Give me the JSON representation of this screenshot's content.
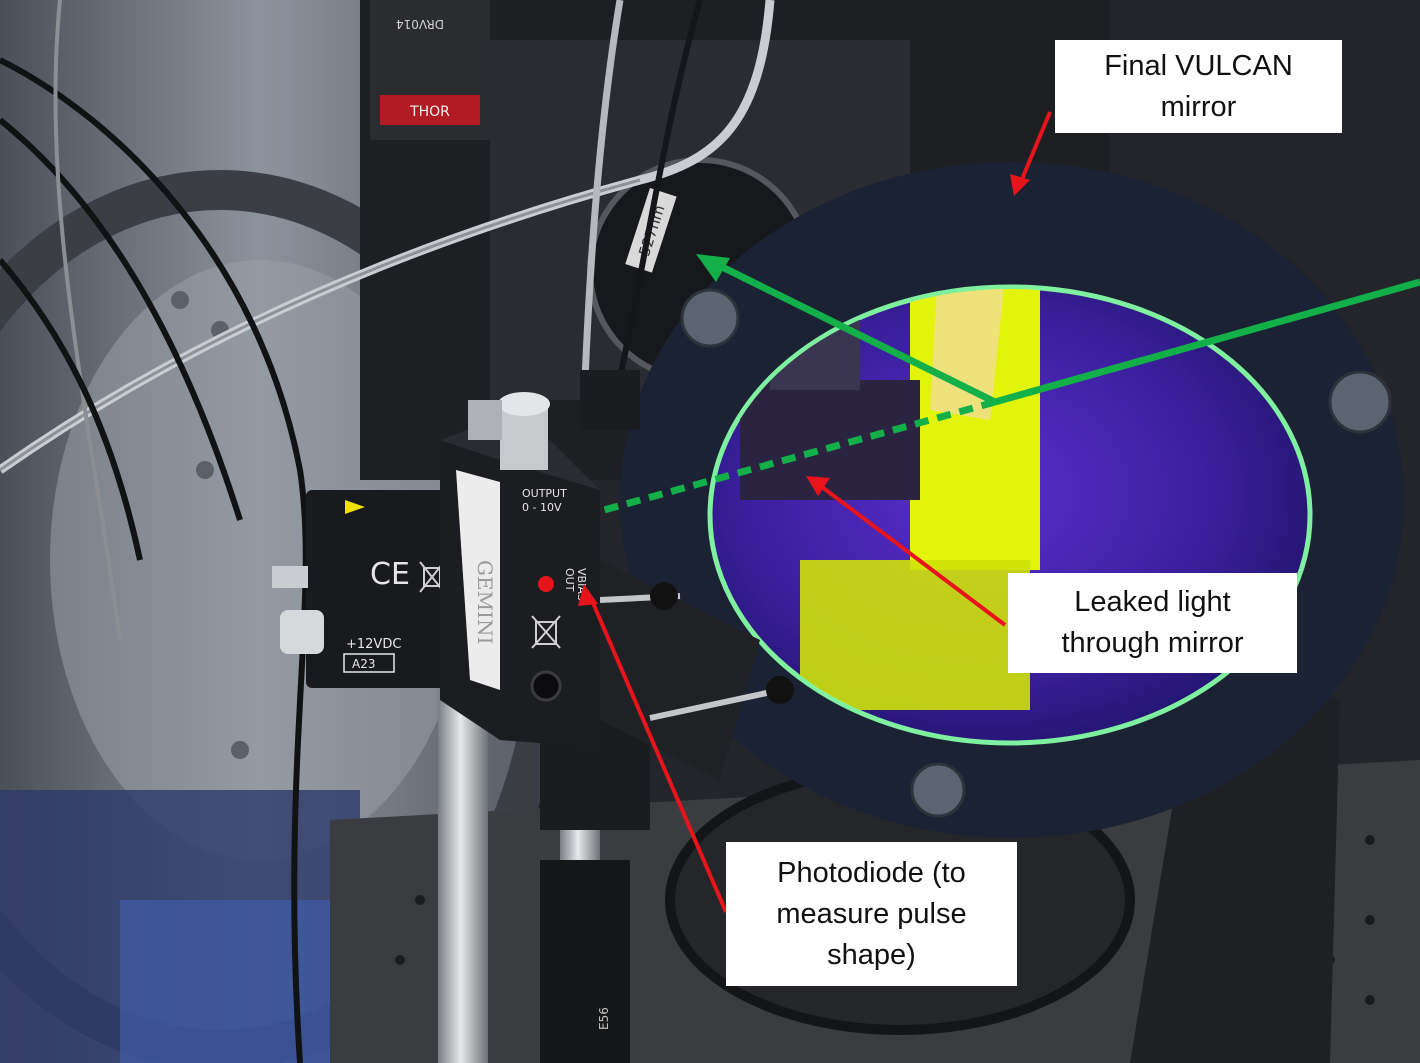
{
  "photo": {
    "sticker_wavelength": "527nm",
    "module_serial": "DRV014",
    "module_brand": "THOR",
    "detector_brand": "GEMINI",
    "detector_output_label": "OUTPUT",
    "detector_output_range": "0 - 10V",
    "detector_vbias_label": "VBIAS",
    "detector_out_label": "OUT",
    "power_label": "+12VDC",
    "battery_label": "A23",
    "ce_mark": "CE",
    "post_label": "E56"
  },
  "annotations": {
    "mirror_label": {
      "line1": "Final VULCAN",
      "line2": "mirror"
    },
    "leak_label": {
      "line1": "Leaked light",
      "line2": "through mirror"
    },
    "diode_label": {
      "line1": "Photodiode (to",
      "line2": "measure pulse",
      "line3": "shape)"
    }
  },
  "colors": {
    "arrow_red": "#e8141b",
    "beam_green": "#13b04a",
    "mirror_yellow": "#e2f40c",
    "mirror_violet": "#3a1f9c",
    "mirror_ring": "#1b2233",
    "label_bg": "#ffffff"
  },
  "icons": [
    "arrow-head-icon",
    "weee-bin-icon",
    "ce-mark-icon"
  ]
}
